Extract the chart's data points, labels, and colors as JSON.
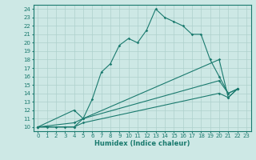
{
  "xlabel": "Humidex (Indice chaleur)",
  "bg_color": "#cde8e5",
  "line_color": "#1a7a6e",
  "grid_color": "#aed0cc",
  "xlim": [
    -0.5,
    23.5
  ],
  "ylim": [
    9.5,
    24.5
  ],
  "xticks": [
    0,
    1,
    2,
    3,
    4,
    5,
    6,
    7,
    8,
    9,
    10,
    11,
    12,
    13,
    14,
    15,
    16,
    17,
    18,
    19,
    20,
    21,
    22,
    23
  ],
  "yticks": [
    10,
    11,
    12,
    13,
    14,
    15,
    16,
    17,
    18,
    19,
    20,
    21,
    22,
    23,
    24
  ],
  "lines": [
    {
      "x": [
        0,
        1,
        2,
        3,
        4,
        5,
        6,
        7,
        8,
        9,
        10,
        11,
        12,
        13,
        14,
        15,
        16,
        17,
        18,
        19,
        20,
        21,
        22
      ],
      "y": [
        10,
        10,
        10,
        10,
        10,
        11,
        13.3,
        16.5,
        17.5,
        19.7,
        20.5,
        20.0,
        21.5,
        24.0,
        23.0,
        22.5,
        22.0,
        21.0,
        21.0,
        18.0,
        16.0,
        14.0,
        14.5
      ]
    },
    {
      "x": [
        0,
        4,
        5,
        20,
        21,
        22
      ],
      "y": [
        10,
        12.0,
        11.0,
        18.0,
        13.5,
        14.5
      ]
    },
    {
      "x": [
        0,
        4,
        5,
        20,
        21,
        22
      ],
      "y": [
        10,
        10.5,
        11.0,
        15.5,
        14.0,
        14.5
      ]
    },
    {
      "x": [
        0,
        4,
        5,
        20,
        21,
        22
      ],
      "y": [
        10,
        10.0,
        10.5,
        14.0,
        13.5,
        14.5
      ]
    }
  ]
}
